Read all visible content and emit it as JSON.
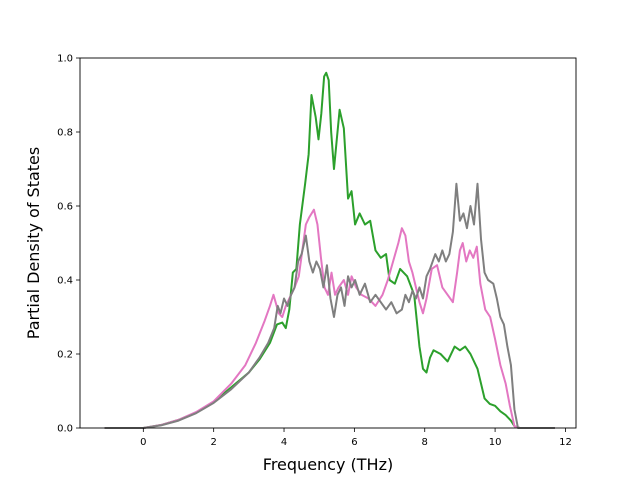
{
  "chart_data": {
    "type": "line",
    "xlabel": "Frequency (THz)",
    "ylabel": "Partial Density of States",
    "xlim": [
      -1.8,
      12.3
    ],
    "ylim": [
      0.0,
      1.0
    ],
    "xticks": [
      0,
      2,
      4,
      6,
      8,
      10,
      12
    ],
    "yticks": [
      0.0,
      0.2,
      0.4,
      0.6,
      0.8,
      1.0
    ],
    "xtick_labels": [
      "0",
      "2",
      "4",
      "6",
      "8",
      "10",
      "12"
    ],
    "ytick_labels": [
      "0.0",
      "0.2",
      "0.4",
      "0.6",
      "0.8",
      "1.0"
    ],
    "grid": false,
    "legend": "none",
    "series": [
      {
        "color": "#2ca02c",
        "points": [
          [
            -1.1,
            0
          ],
          [
            0,
            0
          ],
          [
            0.5,
            0.008
          ],
          [
            1,
            0.022
          ],
          [
            1.5,
            0.042
          ],
          [
            2,
            0.07
          ],
          [
            2.5,
            0.11
          ],
          [
            3,
            0.15
          ],
          [
            3.3,
            0.185
          ],
          [
            3.6,
            0.23
          ],
          [
            3.8,
            0.28
          ],
          [
            3.95,
            0.285
          ],
          [
            4.05,
            0.27
          ],
          [
            4.15,
            0.32
          ],
          [
            4.25,
            0.42
          ],
          [
            4.35,
            0.43
          ],
          [
            4.45,
            0.55
          ],
          [
            4.6,
            0.66
          ],
          [
            4.7,
            0.74
          ],
          [
            4.78,
            0.9
          ],
          [
            4.9,
            0.84
          ],
          [
            4.98,
            0.78
          ],
          [
            5.06,
            0.85
          ],
          [
            5.14,
            0.95
          ],
          [
            5.2,
            0.96
          ],
          [
            5.27,
            0.94
          ],
          [
            5.34,
            0.8
          ],
          [
            5.42,
            0.7
          ],
          [
            5.5,
            0.78
          ],
          [
            5.58,
            0.86
          ],
          [
            5.7,
            0.81
          ],
          [
            5.82,
            0.62
          ],
          [
            5.92,
            0.64
          ],
          [
            6.02,
            0.55
          ],
          [
            6.15,
            0.58
          ],
          [
            6.3,
            0.55
          ],
          [
            6.45,
            0.56
          ],
          [
            6.6,
            0.48
          ],
          [
            6.75,
            0.46
          ],
          [
            6.9,
            0.47
          ],
          [
            7.0,
            0.4
          ],
          [
            7.15,
            0.39
          ],
          [
            7.3,
            0.43
          ],
          [
            7.5,
            0.41
          ],
          [
            7.7,
            0.36
          ],
          [
            7.85,
            0.22
          ],
          [
            7.95,
            0.16
          ],
          [
            8.05,
            0.15
          ],
          [
            8.15,
            0.19
          ],
          [
            8.25,
            0.21
          ],
          [
            8.45,
            0.2
          ],
          [
            8.65,
            0.18
          ],
          [
            8.85,
            0.22
          ],
          [
            9.0,
            0.21
          ],
          [
            9.15,
            0.22
          ],
          [
            9.3,
            0.2
          ],
          [
            9.5,
            0.16
          ],
          [
            9.7,
            0.08
          ],
          [
            9.85,
            0.065
          ],
          [
            10.0,
            0.06
          ],
          [
            10.15,
            0.045
          ],
          [
            10.3,
            0.035
          ],
          [
            10.45,
            0.02
          ],
          [
            10.55,
            0.005
          ],
          [
            10.7,
            0
          ],
          [
            11.7,
            0
          ]
        ]
      },
      {
        "color": "#e377c2",
        "points": [
          [
            -1.1,
            0
          ],
          [
            0,
            0
          ],
          [
            0.5,
            0.008
          ],
          [
            1,
            0.022
          ],
          [
            1.5,
            0.043
          ],
          [
            2,
            0.072
          ],
          [
            2.5,
            0.12
          ],
          [
            2.9,
            0.17
          ],
          [
            3.2,
            0.23
          ],
          [
            3.45,
            0.29
          ],
          [
            3.6,
            0.33
          ],
          [
            3.7,
            0.36
          ],
          [
            3.85,
            0.31
          ],
          [
            3.95,
            0.3
          ],
          [
            4.05,
            0.33
          ],
          [
            4.15,
            0.35
          ],
          [
            4.3,
            0.38
          ],
          [
            4.42,
            0.41
          ],
          [
            4.52,
            0.48
          ],
          [
            4.62,
            0.55
          ],
          [
            4.72,
            0.57
          ],
          [
            4.85,
            0.59
          ],
          [
            4.95,
            0.55
          ],
          [
            5.05,
            0.46
          ],
          [
            5.15,
            0.38
          ],
          [
            5.25,
            0.36
          ],
          [
            5.35,
            0.42
          ],
          [
            5.45,
            0.36
          ],
          [
            5.55,
            0.38
          ],
          [
            5.7,
            0.4
          ],
          [
            5.82,
            0.36
          ],
          [
            5.92,
            0.41
          ],
          [
            6.05,
            0.38
          ],
          [
            6.2,
            0.36
          ],
          [
            6.4,
            0.35
          ],
          [
            6.6,
            0.33
          ],
          [
            6.8,
            0.36
          ],
          [
            6.95,
            0.4
          ],
          [
            7.1,
            0.45
          ],
          [
            7.25,
            0.5
          ],
          [
            7.35,
            0.54
          ],
          [
            7.45,
            0.52
          ],
          [
            7.55,
            0.45
          ],
          [
            7.65,
            0.42
          ],
          [
            7.75,
            0.38
          ],
          [
            7.85,
            0.34
          ],
          [
            7.95,
            0.31
          ],
          [
            8.05,
            0.35
          ],
          [
            8.2,
            0.43
          ],
          [
            8.35,
            0.44
          ],
          [
            8.5,
            0.38
          ],
          [
            8.65,
            0.36
          ],
          [
            8.8,
            0.34
          ],
          [
            8.92,
            0.42
          ],
          [
            9.0,
            0.48
          ],
          [
            9.08,
            0.5
          ],
          [
            9.18,
            0.45
          ],
          [
            9.28,
            0.48
          ],
          [
            9.38,
            0.46
          ],
          [
            9.48,
            0.49
          ],
          [
            9.58,
            0.39
          ],
          [
            9.72,
            0.32
          ],
          [
            9.86,
            0.3
          ],
          [
            10.0,
            0.24
          ],
          [
            10.15,
            0.17
          ],
          [
            10.3,
            0.12
          ],
          [
            10.42,
            0.06
          ],
          [
            10.55,
            0.005
          ],
          [
            10.7,
            0
          ],
          [
            11.7,
            0
          ]
        ]
      },
      {
        "color": "#7f7f7f",
        "points": [
          [
            -1.1,
            0
          ],
          [
            0,
            0
          ],
          [
            0.5,
            0.007
          ],
          [
            1,
            0.02
          ],
          [
            1.5,
            0.04
          ],
          [
            2,
            0.068
          ],
          [
            2.5,
            0.105
          ],
          [
            3,
            0.15
          ],
          [
            3.3,
            0.19
          ],
          [
            3.55,
            0.23
          ],
          [
            3.72,
            0.27
          ],
          [
            3.82,
            0.33
          ],
          [
            3.9,
            0.31
          ],
          [
            4.0,
            0.35
          ],
          [
            4.1,
            0.33
          ],
          [
            4.2,
            0.36
          ],
          [
            4.3,
            0.38
          ],
          [
            4.4,
            0.45
          ],
          [
            4.5,
            0.47
          ],
          [
            4.62,
            0.52
          ],
          [
            4.72,
            0.45
          ],
          [
            4.82,
            0.42
          ],
          [
            4.92,
            0.45
          ],
          [
            5.02,
            0.43
          ],
          [
            5.12,
            0.38
          ],
          [
            5.22,
            0.44
          ],
          [
            5.32,
            0.35
          ],
          [
            5.42,
            0.3
          ],
          [
            5.52,
            0.36
          ],
          [
            5.62,
            0.38
          ],
          [
            5.72,
            0.33
          ],
          [
            5.82,
            0.41
          ],
          [
            5.92,
            0.38
          ],
          [
            6.02,
            0.4
          ],
          [
            6.15,
            0.36
          ],
          [
            6.3,
            0.39
          ],
          [
            6.45,
            0.34
          ],
          [
            6.6,
            0.36
          ],
          [
            6.75,
            0.34
          ],
          [
            6.9,
            0.32
          ],
          [
            7.05,
            0.34
          ],
          [
            7.2,
            0.31
          ],
          [
            7.35,
            0.32
          ],
          [
            7.45,
            0.36
          ],
          [
            7.55,
            0.34
          ],
          [
            7.65,
            0.37
          ],
          [
            7.75,
            0.35
          ],
          [
            7.85,
            0.38
          ],
          [
            7.95,
            0.35
          ],
          [
            8.05,
            0.41
          ],
          [
            8.15,
            0.43
          ],
          [
            8.3,
            0.47
          ],
          [
            8.4,
            0.45
          ],
          [
            8.5,
            0.48
          ],
          [
            8.6,
            0.45
          ],
          [
            8.7,
            0.47
          ],
          [
            8.8,
            0.53
          ],
          [
            8.9,
            0.66
          ],
          [
            9.0,
            0.56
          ],
          [
            9.1,
            0.58
          ],
          [
            9.2,
            0.54
          ],
          [
            9.3,
            0.6
          ],
          [
            9.4,
            0.55
          ],
          [
            9.5,
            0.66
          ],
          [
            9.6,
            0.51
          ],
          [
            9.7,
            0.42
          ],
          [
            9.8,
            0.4
          ],
          [
            9.95,
            0.39
          ],
          [
            10.05,
            0.35
          ],
          [
            10.15,
            0.3
          ],
          [
            10.25,
            0.28
          ],
          [
            10.35,
            0.22
          ],
          [
            10.45,
            0.17
          ],
          [
            10.55,
            0.05
          ],
          [
            10.65,
            0
          ],
          [
            11.7,
            0
          ]
        ]
      }
    ]
  }
}
